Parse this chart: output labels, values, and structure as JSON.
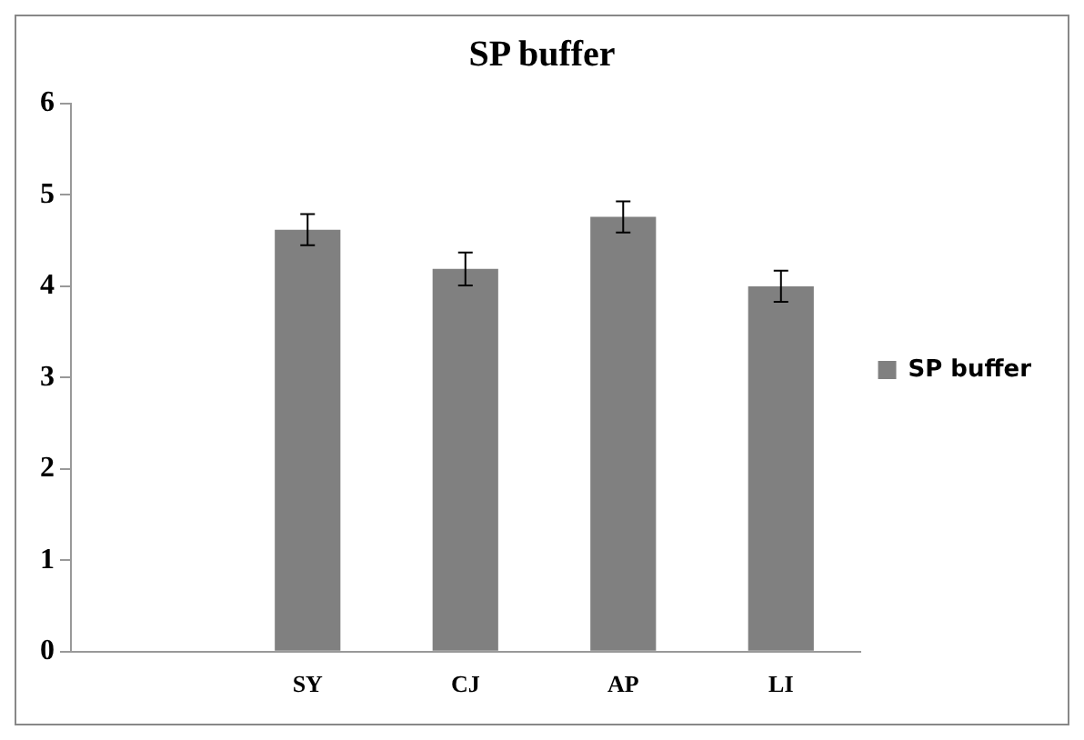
{
  "chart_data": {
    "type": "bar",
    "title": "SP buffer",
    "categories": [
      null,
      "SY",
      "CJ",
      "AP",
      "LI"
    ],
    "series": [
      {
        "name": "SP buffer",
        "color": "#808080",
        "values": [
          null,
          4.62,
          4.19,
          4.76,
          4.0
        ],
        "errors": [
          null,
          0.17,
          0.18,
          0.17,
          0.17
        ]
      }
    ],
    "ylim": [
      0,
      6
    ],
    "yticks": [
      0,
      1,
      2,
      3,
      4,
      5,
      6
    ],
    "grid": false,
    "legend": "right"
  }
}
